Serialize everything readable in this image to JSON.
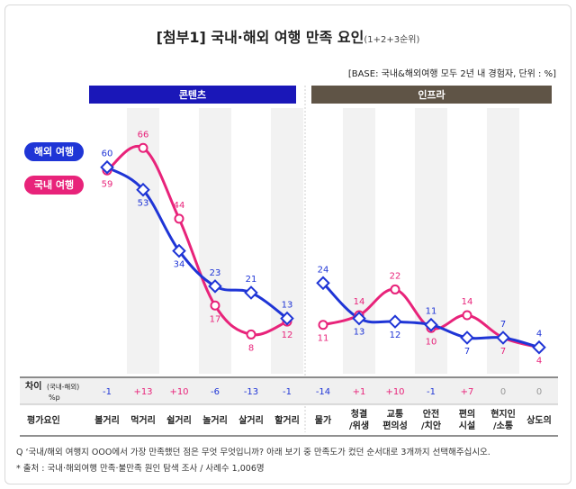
{
  "title": {
    "main": "[첨부1] 국내·해외 여행 만족 요인",
    "sub": "(1+2+3순위)"
  },
  "base_note": "[BASE: 국내&해외여행 모두 2년 내 경험자, 단위 : %]",
  "groups": [
    {
      "label": "콘텐츠",
      "color": "#1a17b8"
    },
    {
      "label": "인프라",
      "color": "#5f5446"
    }
  ],
  "legend": {
    "overseas": "해외 여행",
    "domestic": "국내 여행"
  },
  "colors": {
    "overseas": "#1f35d6",
    "domestic": "#e8237a",
    "diff_row_bg": "#f0f0f0"
  },
  "diff_row": {
    "label_main": "차이",
    "label_small": "(국내-해외)",
    "label_unit": "%p",
    "values": [
      "-1",
      "+13",
      "+10",
      "-6",
      "-13",
      "-1",
      "-14",
      "+1",
      "+10",
      "-1",
      "+7",
      "0",
      "0"
    ]
  },
  "factor_row_label": "평가요인",
  "chart_data": {
    "type": "line",
    "categories": [
      "볼거리",
      "먹거리",
      "쉴거리",
      "놀거리",
      "살거리",
      "할거리",
      "물가",
      "청결/위생",
      "교통편의성",
      "안전/치안",
      "편의시설",
      "현지인/소통",
      "상도의"
    ],
    "category_lines": [
      [
        "볼거리"
      ],
      [
        "먹거리"
      ],
      [
        "쉴거리"
      ],
      [
        "놀거리"
      ],
      [
        "살거리"
      ],
      [
        "할거리"
      ],
      [
        "물가"
      ],
      [
        "청결",
        "/위생"
      ],
      [
        "교통",
        "편의성"
      ],
      [
        "안전",
        "/치안"
      ],
      [
        "편의",
        "시설"
      ],
      [
        "현지인",
        "/소통"
      ],
      [
        "상도의"
      ]
    ],
    "segments": [
      [
        0,
        5
      ],
      [
        6,
        12
      ]
    ],
    "series": [
      {
        "name": "해외 여행",
        "values": [
          60,
          53,
          34,
          23,
          21,
          13,
          24,
          13,
          12,
          11,
          7,
          7,
          4
        ]
      },
      {
        "name": "국내 여행",
        "values": [
          59,
          66,
          44,
          17,
          8,
          12,
          11,
          14,
          22,
          10,
          14,
          7,
          4
        ]
      }
    ],
    "ylim": [
      0,
      70
    ],
    "grid": false
  },
  "notes": {
    "question": "Q ‘국내/해외 여행지 OOO에서 가장 만족했던 점은 무엇 무엇입니까? 아래 보기 중 만족도가 컸던 순서대로 3개까지 선택해주십시오.",
    "source": "* 출처 : 국내·해외여행 만족·불만족 원인 탐색 조사 / 사례수 1,006명"
  }
}
